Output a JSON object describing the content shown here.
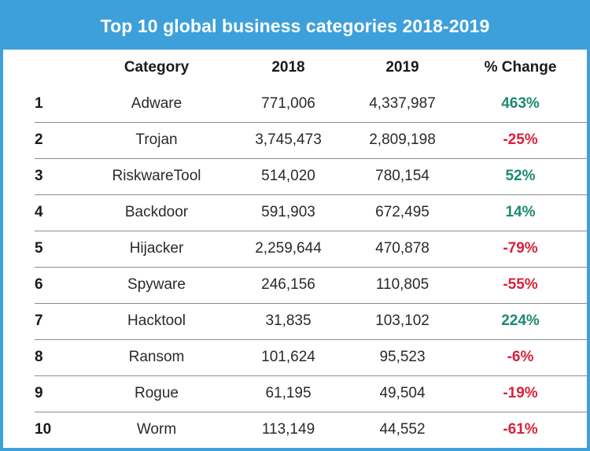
{
  "title": "Top 10 global business categories 2018-2019",
  "colors": {
    "accent": "#3da0db",
    "positive": "#1d8a72",
    "negative": "#d7223a",
    "rule": "#8c8c8c"
  },
  "chart_data": {
    "type": "table",
    "title": "Top 10 global business categories 2018-2019",
    "columns": [
      "",
      "Category",
      "2018",
      "2019",
      "% Change"
    ],
    "rows": [
      {
        "rank": "1",
        "category": "Adware",
        "y2018": "771,006",
        "y2019": "4,337,987",
        "change": "463%",
        "direction": "up"
      },
      {
        "rank": "2",
        "category": "Trojan",
        "y2018": "3,745,473",
        "y2019": "2,809,198",
        "change": "-25%",
        "direction": "down"
      },
      {
        "rank": "3",
        "category": "RiskwareTool",
        "y2018": "514,020",
        "y2019": "780,154",
        "change": "52%",
        "direction": "up"
      },
      {
        "rank": "4",
        "category": "Backdoor",
        "y2018": "591,903",
        "y2019": "672,495",
        "change": "14%",
        "direction": "up"
      },
      {
        "rank": "5",
        "category": "Hijacker",
        "y2018": "2,259,644",
        "y2019": "470,878",
        "change": "-79%",
        "direction": "down"
      },
      {
        "rank": "6",
        "category": "Spyware",
        "y2018": "246,156",
        "y2019": "110,805",
        "change": "-55%",
        "direction": "down"
      },
      {
        "rank": "7",
        "category": "Hacktool",
        "y2018": "31,835",
        "y2019": "103,102",
        "change": "224%",
        "direction": "up"
      },
      {
        "rank": "8",
        "category": "Ransom",
        "y2018": "101,624",
        "y2019": "95,523",
        "change": "-6%",
        "direction": "down"
      },
      {
        "rank": "9",
        "category": "Rogue",
        "y2018": "61,195",
        "y2019": "49,504",
        "change": "-19%",
        "direction": "down"
      },
      {
        "rank": "10",
        "category": "Worm",
        "y2018": "113,149",
        "y2019": "44,552",
        "change": "-61%",
        "direction": "down"
      }
    ]
  }
}
